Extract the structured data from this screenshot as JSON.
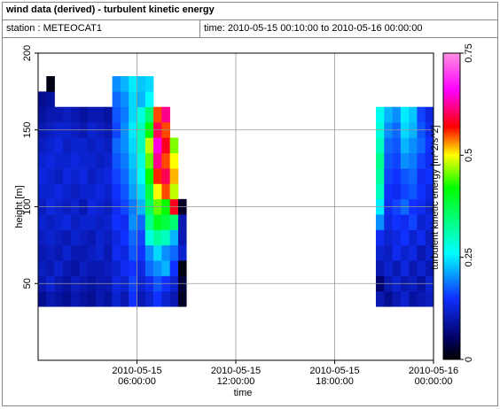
{
  "chart_data": {
    "type": "heatmap",
    "title": "wind data (derived) - turbulent kinetic energy",
    "station": "station : METEOCAT1",
    "time_range": "time: 2010-05-15 00:10:00 to 2010-05-16 00:00:00",
    "xlabel": "time",
    "ylabel": "height [m]",
    "colorbar_label": "turbulent kinetic energy [m^2/s^2]",
    "x": [
      "2010-05-15 00:15:00",
      "2010-05-15 00:45:00",
      "2010-05-15 01:15:00",
      "2010-05-15 01:45:00",
      "2010-05-15 02:15:00",
      "2010-05-15 02:45:00",
      "2010-05-15 03:15:00",
      "2010-05-15 03:45:00",
      "2010-05-15 04:15:00",
      "2010-05-15 04:45:00",
      "2010-05-15 05:15:00",
      "2010-05-15 05:45:00",
      "2010-05-15 06:15:00",
      "2010-05-15 06:45:00",
      "2010-05-15 07:15:00",
      "2010-05-15 07:45:00",
      "2010-05-15 08:15:00",
      "2010-05-15 08:45:00",
      "2010-05-15 09:15:00",
      "2010-05-15 20:45:00",
      "2010-05-15 21:15:00",
      "2010-05-15 21:45:00",
      "2010-05-15 22:15:00",
      "2010-05-15 22:45:00",
      "2010-05-15 23:15:00",
      "2010-05-15 23:45:00"
    ],
    "y": [
      40,
      50,
      60,
      70,
      80,
      90,
      100,
      110,
      120,
      130,
      140,
      150,
      160,
      170,
      180
    ],
    "values": [
      [
        0.08,
        0.1,
        0.09,
        0.08,
        0.1,
        0.09,
        0.08,
        0.1,
        0.09,
        0.12,
        0.1,
        0.15,
        0.1,
        0.12,
        0.15,
        0.12,
        0.1,
        0.02,
        null,
        0.1,
        0.08,
        0.1,
        0.12,
        0.09,
        0.1,
        0.11
      ],
      [
        0.1,
        0.12,
        0.1,
        0.09,
        0.11,
        0.1,
        0.09,
        0.1,
        0.1,
        0.13,
        0.12,
        0.16,
        0.12,
        0.14,
        0.17,
        0.15,
        0.12,
        0.03,
        null,
        0.06,
        0.1,
        0.12,
        0.1,
        0.11,
        0.09,
        0.12
      ],
      [
        0.11,
        0.1,
        0.12,
        0.1,
        0.09,
        0.11,
        0.1,
        0.1,
        0.11,
        0.12,
        0.14,
        0.15,
        0.13,
        0.18,
        0.2,
        0.22,
        0.15,
        0.01,
        null,
        0.1,
        0.12,
        0.1,
        0.13,
        0.1,
        0.12,
        0.1
      ],
      [
        0.1,
        0.11,
        0.1,
        0.12,
        0.1,
        0.1,
        0.11,
        0.12,
        0.1,
        0.14,
        0.13,
        0.17,
        0.15,
        0.2,
        0.24,
        0.2,
        0.18,
        0.12,
        null,
        0.12,
        0.11,
        0.14,
        0.12,
        0.13,
        0.1,
        0.12
      ],
      [
        0.11,
        0.12,
        0.11,
        0.1,
        0.12,
        0.11,
        0.1,
        0.12,
        0.11,
        0.13,
        0.15,
        0.18,
        0.16,
        0.28,
        0.32,
        0.3,
        0.22,
        0.1,
        null,
        0.14,
        0.12,
        0.13,
        0.15,
        0.12,
        0.14,
        0.11
      ],
      [
        0.12,
        0.11,
        0.12,
        0.13,
        0.11,
        0.12,
        0.12,
        0.11,
        0.12,
        0.15,
        0.14,
        0.2,
        0.18,
        0.33,
        0.4,
        0.38,
        0.35,
        0.1,
        null,
        0.2,
        0.13,
        0.15,
        0.14,
        0.16,
        0.12,
        0.13
      ],
      [
        0.11,
        0.13,
        0.12,
        0.11,
        0.12,
        0.1,
        0.13,
        0.12,
        0.11,
        0.14,
        0.16,
        0.19,
        0.22,
        0.36,
        0.45,
        0.42,
        0.58,
        0.02,
        null,
        0.25,
        0.14,
        0.16,
        0.18,
        0.15,
        0.14,
        0.12
      ],
      [
        0.12,
        0.12,
        0.13,
        0.12,
        0.11,
        0.12,
        0.12,
        0.13,
        0.12,
        0.15,
        0.17,
        0.21,
        0.24,
        0.38,
        0.5,
        0.55,
        0.48,
        null,
        null,
        0.3,
        0.15,
        0.14,
        0.16,
        0.17,
        0.15,
        0.13
      ],
      [
        0.13,
        0.12,
        0.11,
        0.13,
        0.12,
        0.13,
        0.11,
        0.12,
        0.13,
        0.16,
        0.18,
        0.22,
        0.26,
        0.42,
        0.56,
        0.6,
        0.52,
        null,
        null,
        0.32,
        0.16,
        0.15,
        0.17,
        0.18,
        0.14,
        0.15
      ],
      [
        0.12,
        0.13,
        0.12,
        0.12,
        0.13,
        0.12,
        0.12,
        0.11,
        0.12,
        0.17,
        0.19,
        0.23,
        0.28,
        0.45,
        0.62,
        0.55,
        0.5,
        null,
        null,
        0.33,
        0.17,
        0.16,
        0.2,
        0.19,
        0.16,
        0.14
      ],
      [
        0.11,
        0.12,
        0.13,
        0.11,
        0.12,
        0.12,
        0.11,
        0.12,
        0.11,
        0.18,
        0.2,
        0.24,
        0.3,
        0.48,
        0.65,
        0.58,
        0.46,
        null,
        null,
        0.3,
        0.18,
        0.17,
        0.22,
        0.2,
        0.18,
        0.15
      ],
      [
        0.1,
        0.11,
        0.12,
        0.12,
        0.11,
        0.1,
        0.12,
        0.11,
        0.1,
        0.16,
        0.2,
        0.25,
        0.3,
        0.42,
        0.6,
        0.55,
        null,
        null,
        null,
        0.28,
        0.2,
        0.18,
        0.24,
        0.22,
        0.17,
        0.14
      ],
      [
        0.09,
        0.1,
        0.1,
        0.11,
        0.1,
        0.09,
        0.1,
        0.1,
        0.09,
        0.17,
        0.19,
        0.24,
        0.28,
        0.35,
        0.55,
        0.62,
        null,
        null,
        null,
        0.27,
        0.22,
        0.2,
        0.25,
        0.23,
        0.16,
        0.13
      ],
      [
        0.08,
        0.09,
        null,
        null,
        null,
        null,
        null,
        null,
        null,
        0.18,
        0.2,
        0.24,
        0.22,
        0.26,
        null,
        null,
        null,
        null,
        null,
        null,
        null,
        null,
        null,
        null,
        null,
        null
      ],
      [
        null,
        0.01,
        null,
        null,
        null,
        null,
        null,
        null,
        null,
        0.2,
        0.22,
        0.25,
        0.23,
        0.24,
        null,
        null,
        null,
        null,
        null,
        null,
        null,
        null,
        null,
        null,
        null,
        null
      ]
    ],
    "xlim": [
      "2010-05-15 00:00:00",
      "2010-05-16 00:00:00"
    ],
    "xticks": [
      "2010-05-15 06:00:00",
      "2010-05-15 12:00:00",
      "2010-05-15 18:00:00",
      "2010-05-16 00:00:00"
    ],
    "ylim": [
      0,
      200
    ],
    "yticks": [
      50,
      100,
      150,
      200
    ],
    "clim": [
      0,
      0.75
    ],
    "cticks": [
      0,
      0.25,
      0.5,
      0.75
    ],
    "colormap": [
      [
        0,
        "#000000"
      ],
      [
        0.05,
        "#000060"
      ],
      [
        0.15,
        "#1030ff"
      ],
      [
        0.26,
        "#00ffff"
      ],
      [
        0.42,
        "#00ff00"
      ],
      [
        0.5,
        "#ffff00"
      ],
      [
        0.57,
        "#ff0000"
      ],
      [
        0.66,
        "#ff00ff"
      ],
      [
        0.75,
        "#ff90e0"
      ]
    ],
    "grid": true
  }
}
